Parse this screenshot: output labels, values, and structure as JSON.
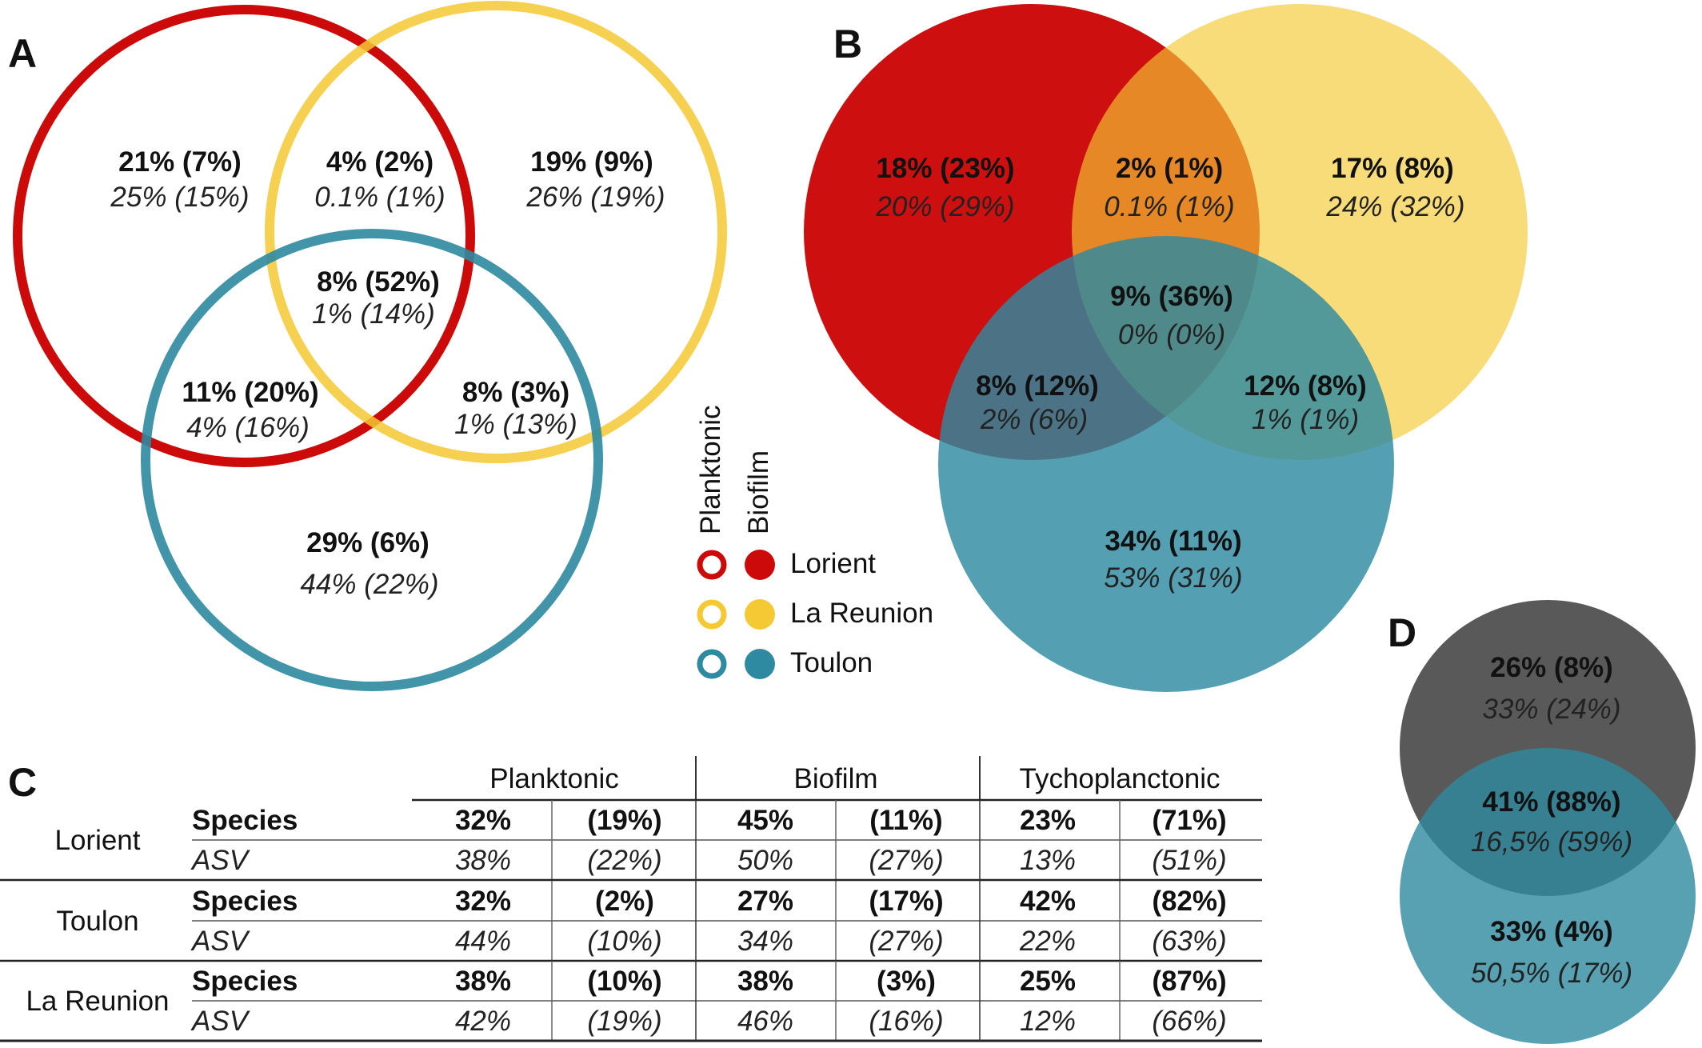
{
  "panels": {
    "A": "A",
    "B": "B",
    "C": "C",
    "D": "D"
  },
  "colors": {
    "lorient": "#cc0a0a",
    "reunion": "#f5c933",
    "toulon": "#2e8aa0",
    "grey": "#595959"
  },
  "legend": {
    "planktonic": "Planktonic",
    "biofilm": "Biofilm",
    "sites": [
      "Lorient",
      "La Reunion",
      "Toulon"
    ]
  },
  "venn_a": {
    "lorient_only": {
      "b": "21% (7%)",
      "i": "25% (15%)"
    },
    "lorient_reunion": {
      "b": "4% (2%)",
      "i": "0.1% (1%)"
    },
    "reunion_only": {
      "b": "19% (9%)",
      "i": "26% (19%)"
    },
    "all": {
      "b": "8% (52%)",
      "i": "1% (14%)"
    },
    "lorient_toulon": {
      "b": "11% (20%)",
      "i": "4% (16%)"
    },
    "reunion_toulon": {
      "b": "8% (3%)",
      "i": "1% (13%)"
    },
    "toulon_only": {
      "b": "29% (6%)",
      "i": "44% (22%)"
    }
  },
  "venn_b": {
    "lorient_only": {
      "b": "18% (23%)",
      "i": "20% (29%)"
    },
    "lorient_reunion": {
      "b": "2% (1%)",
      "i": "0.1% (1%)"
    },
    "reunion_only": {
      "b": "17% (8%)",
      "i": "24% (32%)"
    },
    "all": {
      "b": "9% (36%)",
      "i": "0% (0%)"
    },
    "lorient_toulon": {
      "b": "8% (12%)",
      "i": "2% (6%)"
    },
    "reunion_toulon": {
      "b": "12% (8%)",
      "i": "1% (1%)"
    },
    "toulon_only": {
      "b": "34% (11%)",
      "i": "53% (31%)"
    }
  },
  "venn_d": {
    "top": {
      "b": "26% (8%)",
      "i": "33% (24%)"
    },
    "overlap": {
      "b": "41% (88%)",
      "i": "16,5% (59%)"
    },
    "bottom": {
      "b": "33% (4%)",
      "i": "50,5% (17%)"
    }
  },
  "table_c": {
    "headers": [
      "Planktonic",
      "Biofilm",
      "Tychoplanctonic"
    ],
    "groups": [
      {
        "site": "Lorient",
        "species": {
          "label": "Species",
          "cells": [
            "32%",
            "(19%)",
            "45%",
            "(11%)",
            "23%",
            "(71%)"
          ]
        },
        "asv": {
          "label": "ASV",
          "cells": [
            "38%",
            "(22%)",
            "50%",
            "(27%)",
            "13%",
            "(51%)"
          ]
        }
      },
      {
        "site": "Toulon",
        "species": {
          "label": "Species",
          "cells": [
            "32%",
            "(2%)",
            "27%",
            "(17%)",
            "42%",
            "(82%)"
          ]
        },
        "asv": {
          "label": "ASV",
          "cells": [
            "44%",
            "(10%)",
            "34%",
            "(27%)",
            "22%",
            "(63%)"
          ]
        }
      },
      {
        "site": "La Reunion",
        "species": {
          "label": "Species",
          "cells": [
            "38%",
            "(10%)",
            "38%",
            "(3%)",
            "25%",
            "(87%)"
          ]
        },
        "asv": {
          "label": "ASV",
          "cells": [
            "42%",
            "(19%)",
            "46%",
            "(16%)",
            "12%",
            "(66%)"
          ]
        }
      }
    ]
  }
}
